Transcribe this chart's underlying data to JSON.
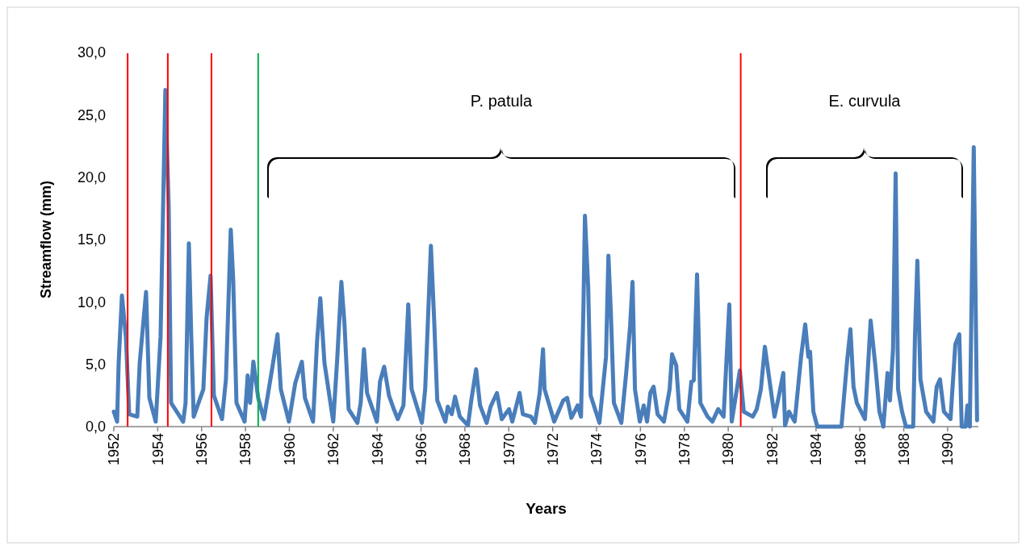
{
  "chart_data": {
    "type": "line",
    "xlabel": "Years",
    "ylabel": "Streamflow (mm)",
    "x": [
      1952.0,
      1952.15,
      1952.22,
      1952.37,
      1952.55,
      1952.7,
      1953.07,
      1953.18,
      1953.47,
      1953.62,
      1953.91,
      1954.13,
      1954.35,
      1954.5,
      1954.61,
      1955.16,
      1955.27,
      1955.42,
      1955.53,
      1955.64,
      1956.08,
      1956.23,
      1956.41,
      1956.56,
      1956.93,
      1957.11,
      1957.33,
      1957.44,
      1957.59,
      1957.96,
      1958.1,
      1958.21,
      1958.36,
      1958.58,
      1958.84,
      1959.24,
      1959.46,
      1959.61,
      1959.98,
      1960.27,
      1960.57,
      1960.71,
      1961.08,
      1961.26,
      1961.41,
      1961.6,
      1962.0,
      1962.18,
      1962.37,
      1962.51,
      1962.7,
      1963.1,
      1963.25,
      1963.4,
      1963.54,
      1963.99,
      1964.13,
      1964.32,
      1964.54,
      1964.76,
      1964.94,
      1965.2,
      1965.42,
      1965.57,
      1966.04,
      1966.19,
      1966.45,
      1966.6,
      1966.74,
      1967.11,
      1967.22,
      1967.4,
      1967.55,
      1967.77,
      1968.14,
      1968.29,
      1968.51,
      1968.69,
      1968.99,
      1969.17,
      1969.46,
      1969.68,
      1970.01,
      1970.16,
      1970.49,
      1970.64,
      1971.01,
      1971.19,
      1971.41,
      1971.56,
      1971.63,
      1972.07,
      1972.48,
      1972.66,
      1972.85,
      1973.14,
      1973.29,
      1973.4,
      1973.47,
      1973.62,
      1973.73,
      1974.13,
      1974.43,
      1974.54,
      1974.65,
      1974.79,
      1975.13,
      1975.35,
      1975.53,
      1975.64,
      1975.75,
      1975.97,
      1976.15,
      1976.3,
      1976.45,
      1976.6,
      1976.78,
      1977.07,
      1977.33,
      1977.44,
      1977.63,
      1977.77,
      1978.14,
      1978.32,
      1978.43,
      1978.58,
      1978.73,
      1979.06,
      1979.28,
      1979.54,
      1979.79,
      1980.05,
      1980.16,
      1980.53,
      1980.71,
      1981.12,
      1981.3,
      1981.49,
      1981.67,
      1982.11,
      1982.29,
      1982.51,
      1982.59,
      1982.77,
      1983.03,
      1983.32,
      1983.51,
      1983.65,
      1983.73,
      1983.88,
      1984.06,
      1985.16,
      1985.42,
      1985.57,
      1985.71,
      1985.86,
      1986.23,
      1986.41,
      1986.49,
      1986.71,
      1986.89,
      1987.07,
      1987.26,
      1987.37,
      1987.51,
      1987.63,
      1987.74,
      1987.92,
      1988.1,
      1988.43,
      1988.51,
      1988.62,
      1988.76,
      1989.02,
      1989.35,
      1989.5,
      1989.65,
      1989.83,
      1990.13,
      1990.35,
      1990.53,
      1990.64,
      1990.82,
      1990.9,
      1991.01,
      1991.19,
      1991.34
    ],
    "series": [
      {
        "color": "#4a7ebb",
        "values": [
          1.2,
          0.4,
          5.1,
          10.5,
          7.2,
          1.0,
          0.8,
          5.1,
          10.8,
          2.3,
          0.4,
          7.2,
          27.0,
          17.6,
          1.9,
          0.4,
          1.9,
          14.7,
          7.2,
          0.8,
          3.0,
          8.8,
          12.1,
          2.5,
          0.6,
          3.8,
          15.8,
          11.8,
          1.9,
          0.4,
          4.1,
          1.9,
          5.2,
          2.3,
          0.6,
          4.9,
          7.4,
          3.0,
          0.4,
          3.5,
          5.2,
          2.3,
          0.4,
          6.8,
          10.3,
          5.1,
          0.4,
          5.4,
          11.6,
          8.3,
          1.4,
          0.3,
          1.9,
          6.2,
          2.7,
          0.4,
          3.6,
          4.8,
          2.5,
          1.4,
          0.6,
          1.7,
          9.8,
          3.0,
          0.3,
          3.0,
          14.5,
          8.5,
          2.1,
          0.4,
          1.6,
          1.0,
          2.4,
          0.8,
          0.1,
          2.1,
          4.6,
          1.7,
          0.3,
          1.6,
          2.7,
          0.6,
          1.4,
          0.4,
          2.7,
          1.0,
          0.8,
          0.3,
          2.7,
          6.2,
          3.0,
          0.4,
          2.1,
          2.3,
          0.7,
          1.7,
          0.8,
          9.4,
          16.9,
          11.1,
          2.5,
          0.3,
          5.6,
          13.7,
          9.2,
          1.9,
          0.3,
          4.3,
          8.1,
          11.6,
          3.0,
          0.4,
          1.7,
          0.4,
          2.7,
          3.2,
          1.0,
          0.4,
          3.0,
          5.8,
          4.9,
          1.4,
          0.4,
          3.6,
          3.7,
          12.2,
          1.9,
          0.8,
          0.4,
          1.4,
          0.8,
          9.8,
          0.4,
          4.5,
          1.2,
          0.8,
          1.4,
          3.0,
          6.4,
          0.8,
          2.3,
          4.3,
          0.1,
          1.2,
          0.4,
          5.6,
          8.2,
          5.6,
          6.0,
          1.2,
          0.0,
          0.0,
          5.3,
          7.8,
          3.2,
          1.9,
          0.6,
          6.0,
          8.5,
          4.8,
          1.2,
          0.0,
          4.3,
          2.1,
          6.2,
          20.3,
          3.0,
          1.2,
          0.0,
          0.0,
          7.2,
          13.3,
          3.8,
          1.2,
          0.4,
          3.2,
          3.8,
          1.2,
          0.6,
          6.6,
          7.4,
          0.0,
          0.0,
          1.7,
          0.0,
          22.4,
          0.5
        ]
      }
    ],
    "xlim": [
      1952,
      1991.4
    ],
    "xticks": [
      1952,
      1954,
      1956,
      1958,
      1960,
      1962,
      1964,
      1966,
      1968,
      1970,
      1972,
      1974,
      1976,
      1978,
      1980,
      1982,
      1984,
      1986,
      1988,
      1990
    ],
    "ylim": [
      0,
      30
    ],
    "yticks": [
      {
        "value": 0,
        "label": "0,0"
      },
      {
        "value": 5,
        "label": "5,0"
      },
      {
        "value": 10,
        "label": "10,0"
      },
      {
        "value": 15,
        "label": "15,0"
      },
      {
        "value": 20,
        "label": "20,0"
      },
      {
        "value": 25,
        "label": "25,0"
      },
      {
        "value": 30,
        "label": "30,0"
      }
    ],
    "ref_lines": [
      {
        "axis": "x",
        "value": 1952.63,
        "color": "#ff0000"
      },
      {
        "axis": "x",
        "value": 1954.46,
        "color": "#ff0000"
      },
      {
        "axis": "x",
        "value": 1956.45,
        "color": "#ff0000"
      },
      {
        "axis": "x",
        "value": 1958.58,
        "color": "#00b050"
      },
      {
        "axis": "x",
        "value": 1980.57,
        "color": "#ff0000"
      }
    ],
    "annotations": [
      "P.  patula",
      "E. curvula"
    ],
    "grid": false,
    "marker": "none",
    "line_style": "solid"
  }
}
